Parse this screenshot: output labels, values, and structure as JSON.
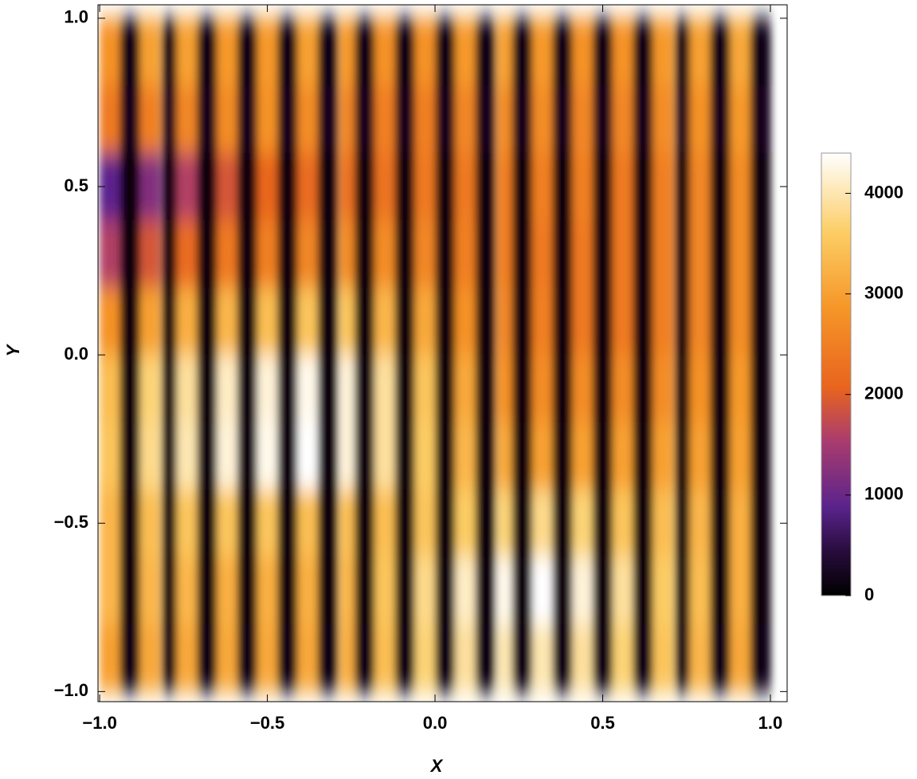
{
  "chart_data": {
    "type": "heatmap",
    "xlabel": "X",
    "ylabel": "Y",
    "xlim": [
      -1.005,
      1.05
    ],
    "ylim": [
      -1.03,
      1.04
    ],
    "xticks": [
      {
        "value": -1,
        "label": "−1.0"
      },
      {
        "value": -0.5,
        "label": "−0.5"
      },
      {
        "value": 0,
        "label": "0.0"
      },
      {
        "value": 0.5,
        "label": "0.5"
      },
      {
        "value": 1,
        "label": "1.0"
      }
    ],
    "yticks": [
      {
        "value": -1,
        "label": "−1.0"
      },
      {
        "value": -0.5,
        "label": "−0.5"
      },
      {
        "value": 0,
        "label": "0.0"
      },
      {
        "value": 0.5,
        "label": "0.5"
      },
      {
        "value": 1,
        "label": "1.0"
      }
    ],
    "zlim": [
      0,
      4400
    ],
    "zticks": [
      0,
      1000,
      2000,
      3000,
      4000
    ],
    "x": [
      -0.97,
      -0.91,
      -0.85,
      -0.79,
      -0.74,
      -0.68,
      -0.62,
      -0.56,
      -0.5,
      -0.44,
      -0.38,
      -0.32,
      -0.26,
      -0.21,
      -0.15,
      -0.09,
      -0.03,
      0.03,
      0.09,
      0.15,
      0.21,
      0.26,
      0.32,
      0.38,
      0.44,
      0.5,
      0.56,
      0.62,
      0.68,
      0.74,
      0.79,
      0.85,
      0.91,
      0.97
    ],
    "y": [
      0.9,
      0.7,
      0.5,
      0.3,
      0.1,
      -0.1,
      -0.3,
      -0.5,
      -0.7,
      -0.9
    ],
    "z": [
      [
        2800,
        150,
        3000,
        150,
        3000,
        150,
        2900,
        150,
        2900,
        150,
        3000,
        150,
        2900,
        150,
        2800,
        150,
        2800,
        150,
        2900,
        150,
        3000,
        150,
        2900,
        150,
        2800,
        150,
        2800,
        150,
        2900,
        150,
        3000,
        150,
        3100,
        150
      ],
      [
        2400,
        200,
        2500,
        200,
        2600,
        200,
        2700,
        200,
        2800,
        200,
        2700,
        200,
        2600,
        200,
        2500,
        200,
        2500,
        200,
        2600,
        200,
        2700,
        200,
        2700,
        200,
        2600,
        200,
        2600,
        200,
        2700,
        200,
        2800,
        200,
        2900,
        200
      ],
      [
        900,
        100,
        1200,
        100,
        1600,
        100,
        1900,
        100,
        2100,
        100,
        2200,
        100,
        2300,
        100,
        2300,
        100,
        2400,
        100,
        2400,
        100,
        2500,
        100,
        2500,
        100,
        2500,
        100,
        2400,
        100,
        2500,
        100,
        2600,
        100,
        2700,
        100
      ],
      [
        1600,
        100,
        1900,
        100,
        2200,
        100,
        2400,
        100,
        2500,
        100,
        2600,
        100,
        2700,
        100,
        2700,
        100,
        2600,
        100,
        2500,
        100,
        2500,
        100,
        2400,
        100,
        2400,
        100,
        2400,
        100,
        2500,
        100,
        2600,
        100,
        2700,
        100
      ],
      [
        2800,
        100,
        3000,
        100,
        3200,
        100,
        3300,
        100,
        3400,
        100,
        3500,
        100,
        3500,
        100,
        3300,
        100,
        3100,
        100,
        2800,
        100,
        2600,
        100,
        2500,
        100,
        2400,
        100,
        2400,
        100,
        2500,
        100,
        2600,
        100,
        2700,
        100
      ],
      [
        3400,
        100,
        3700,
        100,
        3900,
        100,
        4100,
        100,
        4200,
        100,
        4300,
        100,
        4200,
        100,
        3900,
        100,
        3500,
        100,
        3100,
        100,
        2800,
        100,
        2700,
        100,
        2700,
        100,
        2700,
        100,
        2700,
        100,
        2800,
        100,
        2900,
        100
      ],
      [
        3500,
        100,
        3800,
        100,
        4000,
        100,
        4200,
        100,
        4300,
        100,
        4400,
        100,
        4200,
        100,
        3900,
        100,
        3600,
        100,
        3300,
        100,
        3100,
        100,
        3000,
        100,
        3000,
        100,
        3000,
        100,
        3000,
        100,
        3000,
        100,
        3000,
        100
      ],
      [
        3300,
        100,
        3400,
        100,
        3500,
        100,
        3500,
        100,
        3500,
        100,
        3400,
        100,
        3400,
        100,
        3400,
        100,
        3500,
        100,
        3600,
        100,
        3700,
        100,
        3800,
        100,
        3700,
        100,
        3500,
        100,
        3400,
        100,
        3300,
        100,
        3200,
        100
      ],
      [
        3300,
        100,
        3300,
        100,
        3300,
        100,
        3200,
        100,
        3200,
        100,
        3200,
        100,
        3300,
        100,
        3500,
        100,
        3800,
        100,
        4100,
        100,
        4300,
        100,
        4400,
        100,
        4200,
        100,
        3900,
        100,
        3600,
        100,
        3400,
        100,
        3200,
        100
      ],
      [
        3000,
        150,
        3100,
        150,
        3100,
        150,
        3100,
        150,
        3100,
        150,
        3100,
        150,
        3200,
        150,
        3400,
        150,
        3700,
        150,
        3900,
        150,
        4000,
        150,
        4000,
        150,
        3900,
        150,
        3700,
        150,
        3500,
        150,
        3300,
        150,
        3100,
        150
      ]
    ]
  }
}
